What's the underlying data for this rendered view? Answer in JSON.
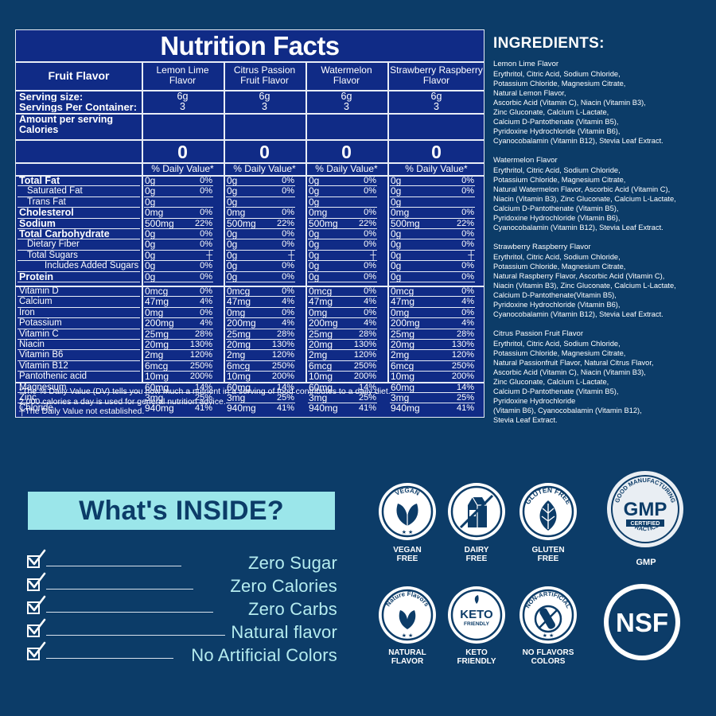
{
  "nutrition": {
    "title": "Nutrition Facts",
    "header_label": "Fruit Flavor",
    "flavors": [
      [
        "Lemon Lime",
        "Flavor"
      ],
      [
        "Citrus Passion",
        "Fruit Flavor"
      ],
      [
        "Watermelon",
        "Flavor"
      ],
      [
        "Strawberry Raspberry",
        "Flavor"
      ]
    ],
    "serving_size_label": "Serving size:",
    "servings_label": "Servings Per Container:",
    "serving_size": "6g",
    "servings": "3",
    "amount_label": "Amount per serving",
    "calories_label": "Calories",
    "calories": "0",
    "dv_header": "% Daily Value*",
    "rows": [
      {
        "label": "Total Fat",
        "bold": true,
        "indent": 0,
        "amount": "0g",
        "pct": "0%"
      },
      {
        "label": "Saturated Fat",
        "bold": false,
        "indent": 1,
        "amount": "0g",
        "pct": "0%"
      },
      {
        "label": "Trans Fat",
        "bold": false,
        "indent": 1,
        "amount": "0g",
        "pct": ""
      },
      {
        "label": "Cholesterol",
        "bold": true,
        "indent": 0,
        "amount": "0mg",
        "pct": "0%"
      },
      {
        "label": "Sodium",
        "bold": true,
        "indent": 0,
        "amount": "500mg",
        "pct": "22%"
      },
      {
        "label": "Total Carbohydrate",
        "bold": true,
        "indent": 0,
        "amount": "0g",
        "pct": "0%"
      },
      {
        "label": "Dietary Fiber",
        "bold": false,
        "indent": 1,
        "amount": "0g",
        "pct": "0%"
      },
      {
        "label": "Total Sugars",
        "bold": false,
        "indent": 1,
        "amount": "0g",
        "pct": "┼"
      },
      {
        "label": "Includes Added Sugars",
        "bold": false,
        "indent": 2,
        "amount": "0g",
        "pct": "0%"
      },
      {
        "label": "Protein",
        "bold": true,
        "indent": 0,
        "amount": "0g",
        "pct": "0%"
      }
    ],
    "vitamins": [
      {
        "label": "Vitamin D",
        "amount": "0mcg",
        "pct": "0%"
      },
      {
        "label": "Calcium",
        "amount": "47mg",
        "pct": "4%"
      },
      {
        "label": "Iron",
        "amount": "0mg",
        "pct": "0%"
      },
      {
        "label": "Potassium",
        "amount": "200mg",
        "pct": "4%"
      },
      {
        "label": "Vitamin C",
        "amount": "25mg",
        "pct": "28%"
      },
      {
        "label": "Niacin",
        "amount": "20mg",
        "pct": "130%"
      },
      {
        "label": "Vitamin B6",
        "amount": "2mg",
        "pct": "120%"
      },
      {
        "label": "Vitamin B12",
        "amount": "6mcg",
        "pct": "250%"
      },
      {
        "label": "Pantothenic acid",
        "amount": "10mg",
        "pct": "200%"
      },
      {
        "label": "Magnesium",
        "amount": "60mg",
        "pct": "14%"
      },
      {
        "label": "Zinc",
        "amount": "3mg",
        "pct": "25%"
      },
      {
        "label": "Chloride",
        "amount": "940mg",
        "pct": "41%"
      }
    ],
    "footnote_1": "*The % Daily Value (DV) tells you how much a nutrient in a serving of food contributes to a daily diet.",
    "footnote_2": "2,000 calories a day is used for general nutrition advice.",
    "footnote_3": "┼The Daily Value not established."
  },
  "ingredients": {
    "title": "INGREDIENTS:",
    "blocks": [
      {
        "head": "Lemon Lime Flavor",
        "lines": [
          "Erythritol, Citric Acid, Sodium Chloride,",
          "Potassium Chloride, Magnesium Citrate,",
          "Natural Lemon Flavor,",
          "Ascorbic Acid (Vitamin C), Niacin (Vitamin B3),",
          "Zinc Gluconate, Calcium L-Lactate,",
          "Calcium D-Pantothenate (Vitamin B5),",
          "Pyridoxine Hydrochloride (Vitamin B6),",
          "Cyanocobalamin (Vitamin B12), Stevia Leaf Extract."
        ]
      },
      {
        "head": "Watermelon Flavor",
        "lines": [
          "Erythritol, Citric Acid, Sodium Chloride,",
          "Potassium Chloride, Magnesium Citrate,",
          "Natural Watermelon Flavor, Ascorbic Acid (Vitamin C),",
          "Niacin (Vitamin B3), Zinc Gluconate, Calcium L-Lactate,",
          "Calcium D-Pantothenate (Vitamin B5),",
          "Pyridoxine Hydrochloride (Vitamin B6),",
          "Cyanocobalamin (Vitamin B12), Stevia Leaf Extract."
        ]
      },
      {
        "head": "Strawberry Raspberry Flavor",
        "lines": [
          "Erythritol, Citric Acid, Sodium Chloride,",
          "Potassium Chloride, Magnesium Citrate,",
          "Natural Raspberry Flavor, Ascorbic Acid (Vitamin C),",
          "Niacin (Vitamin B3), Zinc Gluconate, Calcium L-Lactate,",
          "Calcium D-Pantothenate(Vitamin B5),",
          "Pyridoxine Hydrochloride (Vitamin B6),",
          "Cyanocobalamin (Vitamin B12), Stevia Leaf Extract."
        ]
      },
      {
        "head": "Citrus Passion Fruit Flavor",
        "lines": [
          "Erythritol, Citric Acid, Sodium Chloride,",
          "Potassium Chloride, Magnesium Citrate,",
          "Natural Passionfruit Flavor, Natural Citrus Flavor,",
          "Ascorbic Acid (Vitamin C), Niacin (Vitamin B3),",
          "Zinc Gluconate, Calcium L-Lactate,",
          "Calcium D-Pantothenate (Vitamin B5),",
          "Pyridoxine Hydrochloride",
          "(Vitamin B6), Cyanocobalamin (Vitamin B12),",
          "Stevia Leaf Extract."
        ]
      }
    ]
  },
  "inside": {
    "title": "What's INSIDE?",
    "items": [
      "Zero Sugar",
      "Zero Calories",
      "Zero Carbs",
      "Natural flavor",
      "No Artificial Colors"
    ]
  },
  "badges": {
    "vegan_ring": "VEGAN",
    "vegan": "VEGAN\nFREE",
    "dairy": "DAIRY\nFREE",
    "gluten_ring": "GLUTEN FREE",
    "gluten": "GLUTEN\nFREE",
    "gmp_ring_top": "GOOD MANUFACTURING",
    "gmp_ring_bottom": "PRACTICE",
    "gmp_big": "GMP",
    "gmp_certified": "CERTIFIED",
    "gmp": "GMP",
    "nature_ring": "Nature Flavors",
    "natural": "NATURAL\nFLAVOR",
    "keto_big": "KETO",
    "keto_small": "FRIENDLY",
    "keto": "KETO\nFRIENDLY",
    "nonart_ring": "NON-ARTIFICIAL",
    "nonart": "NO FLAVORS\nCOLORS",
    "nsf": "NSF"
  },
  "colors": {
    "background": "#0c3c68",
    "panel": "#102b86",
    "banner": "#9be6ea",
    "inside_text": "#b5ecef"
  }
}
